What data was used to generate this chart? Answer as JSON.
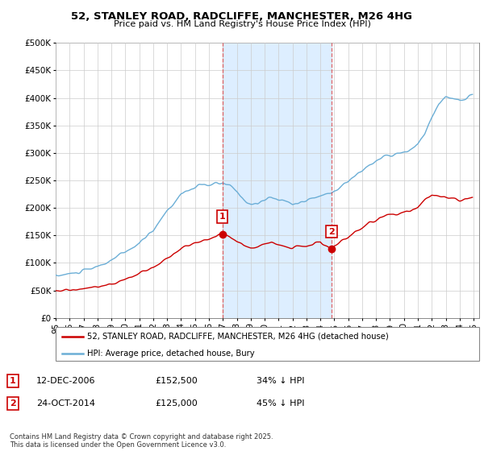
{
  "title": "52, STANLEY ROAD, RADCLIFFE, MANCHESTER, M26 4HG",
  "subtitle": "Price paid vs. HM Land Registry's House Price Index (HPI)",
  "ylim": [
    0,
    500000
  ],
  "yticks": [
    0,
    50000,
    100000,
    150000,
    200000,
    250000,
    300000,
    350000,
    400000,
    450000,
    500000
  ],
  "ytick_labels": [
    "£0",
    "£50K",
    "£100K",
    "£150K",
    "£200K",
    "£250K",
    "£300K",
    "£350K",
    "£400K",
    "£450K",
    "£500K"
  ],
  "xlim_start": 1995.0,
  "xlim_end": 2025.4,
  "hpi_color": "#6baed6",
  "price_color": "#cc0000",
  "shade_color": "#ddeeff",
  "vline_color": "#dd4444",
  "marker1_x": 2006.96,
  "marker1_y": 152500,
  "marker2_x": 2014.81,
  "marker2_y": 125000,
  "vline1_x": 2006.96,
  "vline2_x": 2014.81,
  "annotation1_date": "12-DEC-2006",
  "annotation1_price": "£152,500",
  "annotation1_hpi": "34% ↓ HPI",
  "annotation2_date": "24-OCT-2014",
  "annotation2_price": "£125,000",
  "annotation2_hpi": "45% ↓ HPI",
  "legend_label_red": "52, STANLEY ROAD, RADCLIFFE, MANCHESTER, M26 4HG (detached house)",
  "legend_label_blue": "HPI: Average price, detached house, Bury",
  "footer": "Contains HM Land Registry data © Crown copyright and database right 2025.\nThis data is licensed under the Open Government Licence v3.0."
}
